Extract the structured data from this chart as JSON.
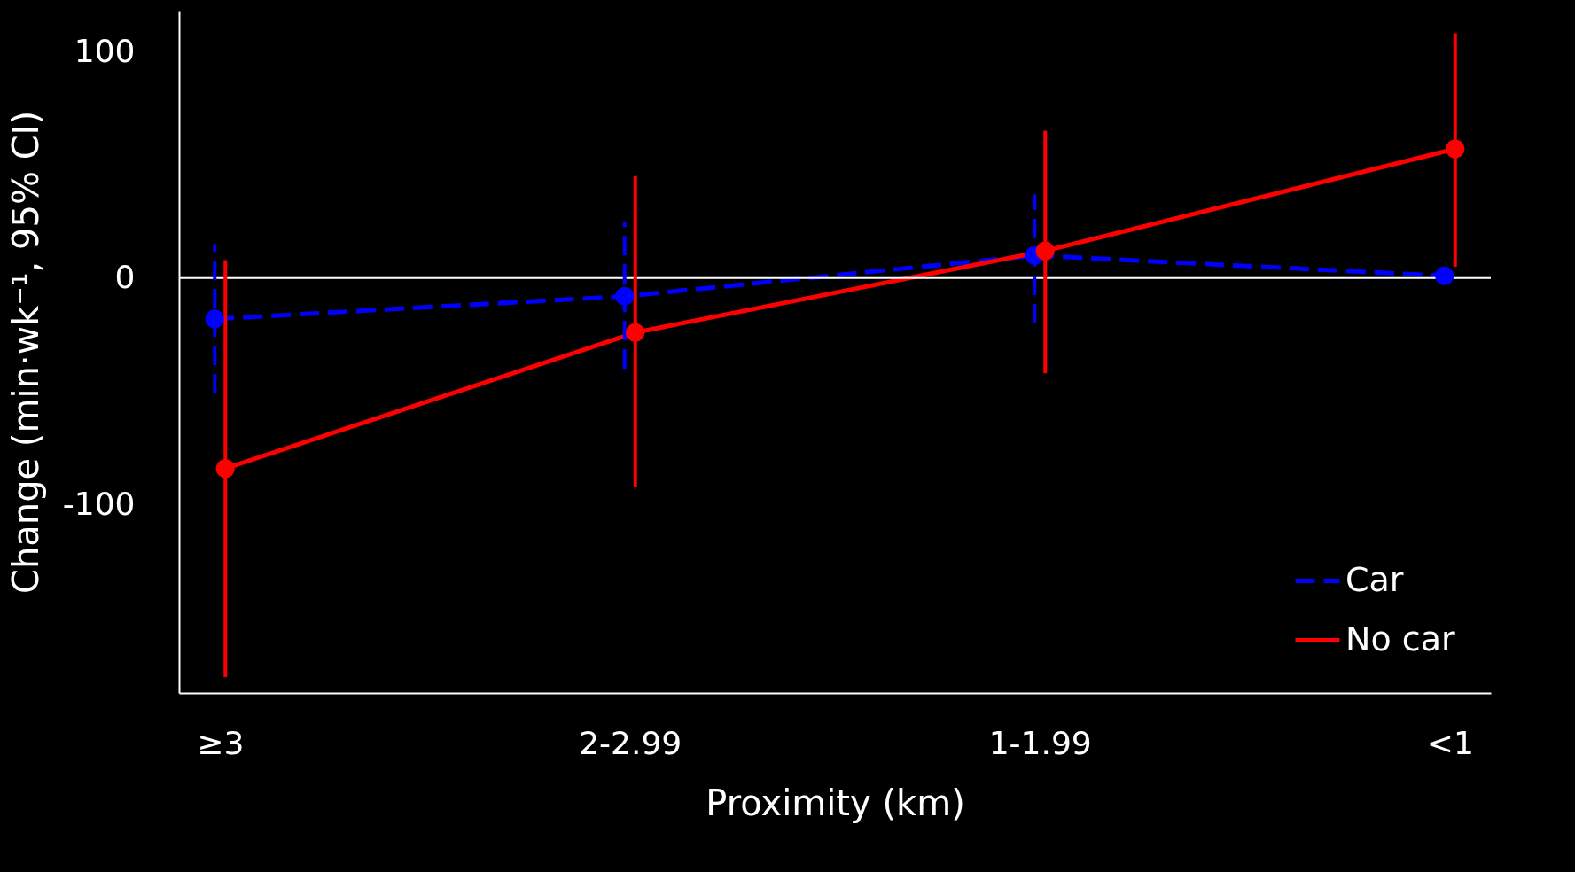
{
  "chart_data": {
    "type": "line",
    "xlabel": "Proximity (km)",
    "ylabel": "Change (min·wk⁻¹, 95% CI)",
    "categories": [
      "≥3",
      "2-2.99",
      "1-1.99",
      "<1"
    ],
    "series": [
      {
        "name": "Car",
        "color": "#0000ff",
        "line_style": "dashed",
        "values": [
          -18,
          -8,
          10,
          1
        ],
        "errors": [
          [
            -51,
            15
          ],
          [
            -40,
            25
          ],
          [
            -20,
            37
          ],
          null
        ]
      },
      {
        "name": "No car",
        "color": "#ff0000",
        "line_style": "solid",
        "values": [
          -84,
          -24,
          12,
          57
        ],
        "errors": [
          [
            -176,
            8
          ],
          [
            -92,
            45
          ],
          [
            -42,
            65
          ],
          [
            5,
            108
          ]
        ]
      }
    ],
    "ylim": [
      -183,
      118
    ],
    "yticks": [
      -100,
      0,
      100
    ],
    "ref_lines": [
      {
        "axis": "y",
        "value": 0,
        "color": "#ffffff"
      }
    ],
    "grid": false,
    "legend": "bottom right",
    "marker": "circle"
  }
}
